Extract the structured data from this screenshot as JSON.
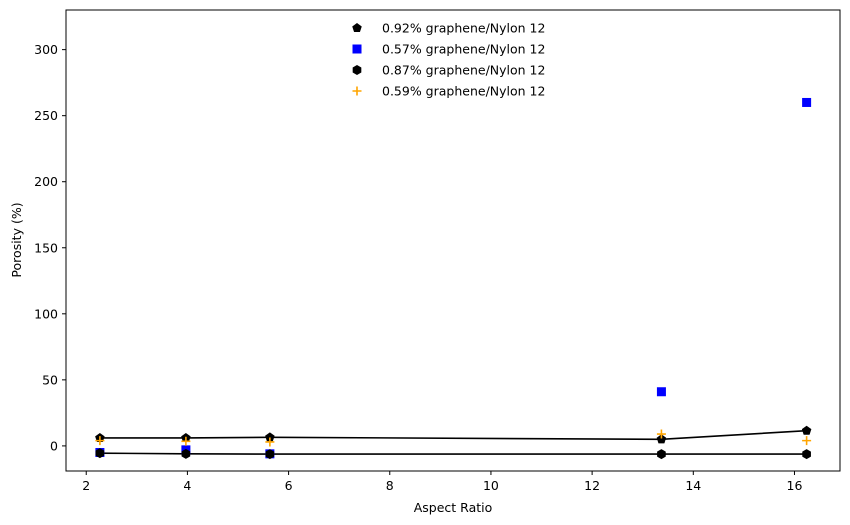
{
  "chart_data": {
    "type": "scatter",
    "title": "",
    "xlabel": "Aspect Ratio",
    "ylabel": "Porosity (%)",
    "xlim": [
      1.6,
      16.9
    ],
    "ylim": [
      -19,
      330
    ],
    "xticks": [
      2,
      4,
      6,
      8,
      10,
      12,
      14,
      16
    ],
    "yticks": [
      0,
      50,
      100,
      150,
      200,
      250,
      300
    ],
    "grid": false,
    "legend_position": "top-center",
    "series": [
      {
        "name": "0.92% graphene/Nylon 12",
        "marker": "pentagon",
        "color": "#000000",
        "connected": true,
        "x": [
          2.27,
          3.97,
          5.63,
          13.37,
          16.24
        ],
        "y": [
          6.0,
          6.0,
          6.5,
          5.0,
          11.5
        ]
      },
      {
        "name": "0.57% graphene/Nylon 12",
        "marker": "square",
        "color": "#0000ff",
        "connected": false,
        "x": [
          2.27,
          3.97,
          5.63,
          13.37,
          16.24
        ],
        "y": [
          -5.0,
          -3.0,
          -6.0,
          41.0,
          260.0
        ]
      },
      {
        "name": "0.87% graphene/Nylon 12",
        "marker": "hexagon",
        "color": "#000000",
        "connected": true,
        "x": [
          2.27,
          3.97,
          5.63,
          13.37,
          16.24
        ],
        "y": [
          -5.5,
          -6.0,
          -6.2,
          -6.2,
          -6.2
        ]
      },
      {
        "name": "0.59% graphene/Nylon 12",
        "marker": "plus",
        "color": "#ffa500",
        "connected": false,
        "x": [
          2.27,
          3.97,
          5.63,
          13.37,
          16.24
        ],
        "y": [
          4.0,
          3.5,
          3.0,
          9.0,
          4.0
        ]
      }
    ]
  }
}
